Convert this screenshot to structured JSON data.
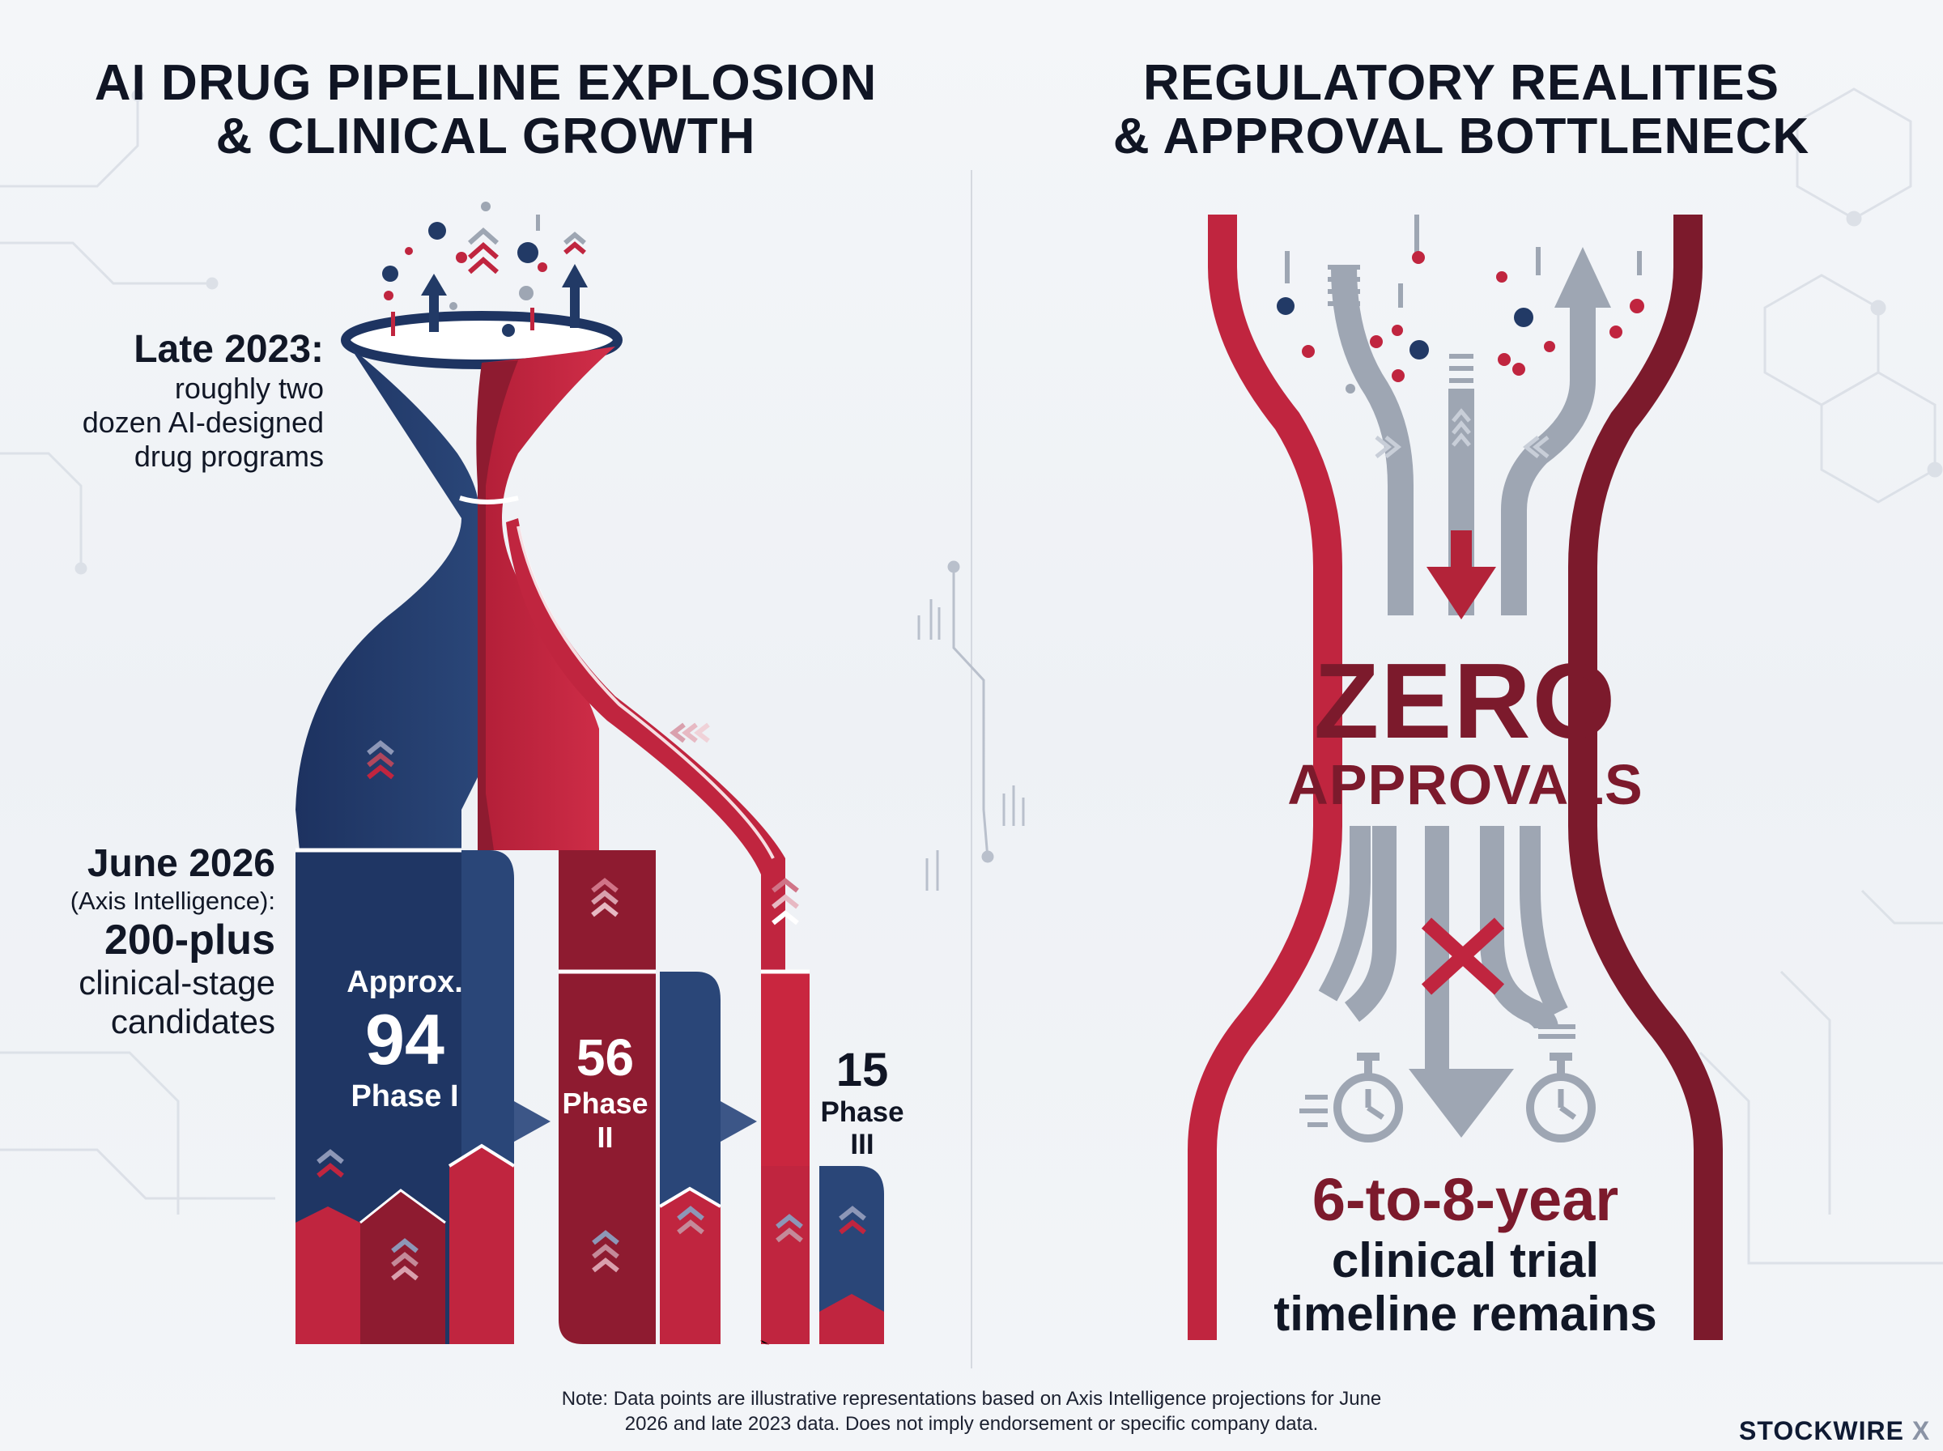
{
  "left_panel": {
    "title_line1": "AI DRUG PIPELINE EXPLOSION",
    "title_line2": "& CLINICAL GROWTH",
    "late_2023": {
      "heading": "Late 2023:",
      "line1": "roughly two",
      "line2": "dozen AI-designed",
      "line3": "drug programs"
    },
    "june_2026": {
      "heading": "June 2026",
      "source": "(Axis Intelligence):",
      "count": "200-plus",
      "line1": "clinical-stage",
      "line2": "candidates"
    },
    "phases": [
      {
        "prefix": "Approx.",
        "value": "94",
        "label": "Phase I"
      },
      {
        "value": "56",
        "label_line1": "Phase",
        "label_line2": "II"
      },
      {
        "value": "15",
        "label_line1": "Phase",
        "label_line2": "III"
      }
    ]
  },
  "right_panel": {
    "title_line1": "REGULATORY REALITIES",
    "title_line2": "& APPROVAL BOTTLENECK",
    "headline_big": "ZERO",
    "headline_small": "APPROVALS",
    "timeline_lead": "6-to-8-year",
    "timeline_line1": "clinical trial",
    "timeline_line2": "timeline remains"
  },
  "footer": {
    "note_line1": "Note: Data points are illustrative representations based on Axis Intelligence projections for June",
    "note_line2": "2026 and late 2023 data. Does not imply endorsement or specific company data.",
    "brand": "STOCKWIRE",
    "brand_mark": "X"
  },
  "colors": {
    "navy": "#223a66",
    "red": "#c0253f",
    "maroon": "#7c1a2c",
    "gray": "#9ea6b3"
  },
  "icons": [
    "upward-arrow-icon",
    "chevron-icon",
    "down-arrow-icon",
    "cross-icon",
    "stopwatch-icon"
  ]
}
